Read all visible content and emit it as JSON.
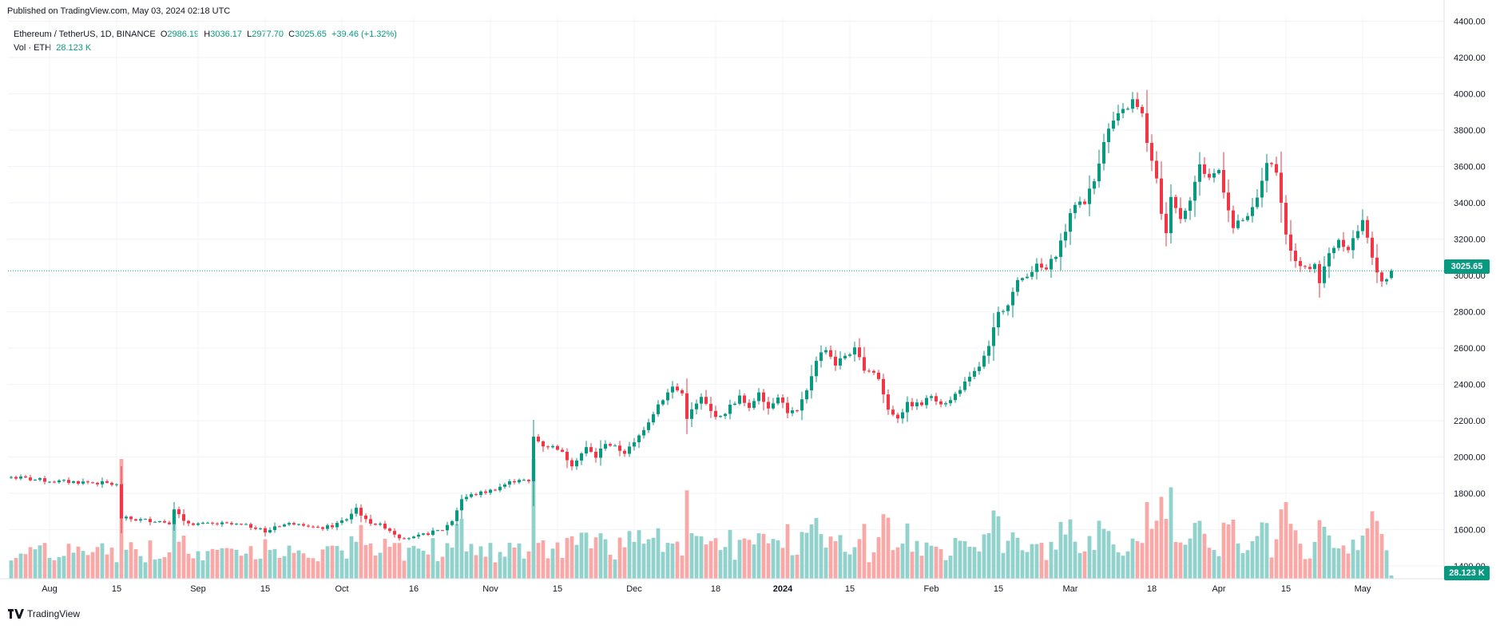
{
  "header": {
    "published": "Published on TradingView.com, May 03, 2024 02:18 UTC"
  },
  "legend": {
    "symbol": "Ethereum / TetherUS, 1D, BINANCE",
    "o_label": "O",
    "o_value": "2986.19",
    "h_label": "H",
    "h_value": "3036.17",
    "l_label": "L",
    "l_value": "2977.70",
    "c_label": "C",
    "c_value": "3025.65",
    "change": "+39.46 (+1.32%)",
    "vol_label": "Vol · ETH",
    "vol_value": "28.123 K"
  },
  "badges": {
    "last_price": "3025.65",
    "last_volume": "28.123 K"
  },
  "footer": {
    "logo_text": "TradingView"
  },
  "colors": {
    "up": "#089981",
    "down": "#f23645",
    "up_vol": "#92d2cc",
    "down_vol": "#f7a9a7",
    "grid": "#f0f3fa",
    "axis_text": "#131722"
  },
  "chart_data": {
    "type": "candlestick",
    "symbol": "ETHUSDT",
    "timeframe": "1D",
    "exchange": "BINANCE",
    "y_ticks": [
      1400,
      1600,
      1800,
      2000,
      2200,
      2400,
      2600,
      2800,
      3000,
      3200,
      3400,
      3600,
      3800,
      4000,
      4200,
      4400
    ],
    "y_tick_labels": [
      "1400.00",
      "1600.00",
      "1800.00",
      "2000.00",
      "2200.00",
      "2400.00",
      "2600.00",
      "2800.00",
      "3000.00",
      "3200.00",
      "3400.00",
      "3600.00",
      "3800.00",
      "4000.00",
      "4200.00",
      "4400.00"
    ],
    "ylim": [
      1330,
      4420
    ],
    "x_ticks": [
      {
        "label": "Aug",
        "index": 8
      },
      {
        "label": "15",
        "index": 22
      },
      {
        "label": "Sep",
        "index": 39
      },
      {
        "label": "15",
        "index": 53
      },
      {
        "label": "Oct",
        "index": 69
      },
      {
        "label": "16",
        "index": 84
      },
      {
        "label": "Nov",
        "index": 100
      },
      {
        "label": "15",
        "index": 114
      },
      {
        "label": "Dec",
        "index": 130
      },
      {
        "label": "18",
        "index": 147
      },
      {
        "label": "2024",
        "index": 161
      },
      {
        "label": "15",
        "index": 175
      },
      {
        "label": "Feb",
        "index": 192
      },
      {
        "label": "15",
        "index": 206
      },
      {
        "label": "Mar",
        "index": 221
      },
      {
        "label": "18",
        "index": 238
      },
      {
        "label": "Apr",
        "index": 252
      },
      {
        "label": "15",
        "index": 266
      },
      {
        "label": "May",
        "index": 282
      }
    ],
    "anchors": [
      [
        0,
        1890
      ],
      [
        5,
        1875
      ],
      [
        10,
        1865
      ],
      [
        15,
        1862
      ],
      [
        20,
        1855
      ],
      [
        22,
        1845
      ],
      [
        23,
        1665
      ],
      [
        26,
        1655
      ],
      [
        30,
        1650
      ],
      [
        33,
        1640
      ],
      [
        34,
        1720
      ],
      [
        36,
        1640
      ],
      [
        40,
        1630
      ],
      [
        44,
        1632
      ],
      [
        48,
        1625
      ],
      [
        52,
        1610
      ],
      [
        53,
        1580
      ],
      [
        55,
        1620
      ],
      [
        60,
        1640
      ],
      [
        64,
        1605
      ],
      [
        67,
        1620
      ],
      [
        70,
        1660
      ],
      [
        72,
        1720
      ],
      [
        74,
        1650
      ],
      [
        78,
        1615
      ],
      [
        81,
        1560
      ],
      [
        84,
        1555
      ],
      [
        87,
        1580
      ],
      [
        90,
        1600
      ],
      [
        92,
        1650
      ],
      [
        94,
        1770
      ],
      [
        96,
        1790
      ],
      [
        100,
        1815
      ],
      [
        104,
        1860
      ],
      [
        106,
        1880
      ],
      [
        108,
        1860
      ],
      [
        109,
        2110
      ],
      [
        111,
        2065
      ],
      [
        114,
        2050
      ],
      [
        117,
        1960
      ],
      [
        120,
        2050
      ],
      [
        122,
        2000
      ],
      [
        124,
        2080
      ],
      [
        128,
        2025
      ],
      [
        130,
        2075
      ],
      [
        133,
        2200
      ],
      [
        135,
        2290
      ],
      [
        138,
        2385
      ],
      [
        140,
        2350
      ],
      [
        141,
        2220
      ],
      [
        144,
        2325
      ],
      [
        146,
        2250
      ],
      [
        148,
        2215
      ],
      [
        150,
        2280
      ],
      [
        152,
        2330
      ],
      [
        154,
        2260
      ],
      [
        156,
        2365
      ],
      [
        158,
        2270
      ],
      [
        160,
        2340
      ],
      [
        162,
        2250
      ],
      [
        164,
        2250
      ],
      [
        166,
        2360
      ],
      [
        168,
        2540
      ],
      [
        170,
        2600
      ],
      [
        172,
        2510
      ],
      [
        174,
        2560
      ],
      [
        176,
        2590
      ],
      [
        178,
        2490
      ],
      [
        180,
        2470
      ],
      [
        181,
        2430
      ],
      [
        183,
        2260
      ],
      [
        185,
        2220
      ],
      [
        187,
        2290
      ],
      [
        190,
        2290
      ],
      [
        192,
        2340
      ],
      [
        194,
        2300
      ],
      [
        196,
        2310
      ],
      [
        198,
        2380
      ],
      [
        200,
        2430
      ],
      [
        202,
        2500
      ],
      [
        204,
        2600
      ],
      [
        205,
        2700
      ],
      [
        206,
        2790
      ],
      [
        208,
        2850
      ],
      [
        210,
        2960
      ],
      [
        212,
        3010
      ],
      [
        214,
        3050
      ],
      [
        216,
        3030
      ],
      [
        218,
        3120
      ],
      [
        220,
        3250
      ],
      [
        222,
        3400
      ],
      [
        224,
        3410
      ],
      [
        226,
        3520
      ],
      [
        228,
        3750
      ],
      [
        230,
        3850
      ],
      [
        232,
        3900
      ],
      [
        234,
        3960
      ],
      [
        236,
        3880
      ],
      [
        237,
        3740
      ],
      [
        238,
        3620
      ],
      [
        239,
        3520
      ],
      [
        240,
        3350
      ],
      [
        241,
        3220
      ],
      [
        242,
        3450
      ],
      [
        244,
        3310
      ],
      [
        246,
        3430
      ],
      [
        248,
        3600
      ],
      [
        250,
        3540
      ],
      [
        252,
        3580
      ],
      [
        254,
        3370
      ],
      [
        255,
        3260
      ],
      [
        257,
        3310
      ],
      [
        258,
        3310
      ],
      [
        260,
        3420
      ],
      [
        262,
        3630
      ],
      [
        264,
        3560
      ],
      [
        265,
        3420
      ],
      [
        266,
        3220
      ],
      [
        268,
        3070
      ],
      [
        270,
        3030
      ],
      [
        272,
        3070
      ],
      [
        273,
        2960
      ],
      [
        275,
        3120
      ],
      [
        277,
        3200
      ],
      [
        279,
        3150
      ],
      [
        281,
        3250
      ],
      [
        282,
        3290
      ],
      [
        283,
        3220
      ],
      [
        285,
        3000
      ],
      [
        286,
        2960
      ],
      [
        287,
        2990
      ],
      [
        288,
        3025.65
      ]
    ],
    "last_candle": {
      "open": 2986.19,
      "high": 3036.17,
      "low": 2977.7,
      "close": 3025.65,
      "volume": "28.123 K"
    }
  }
}
